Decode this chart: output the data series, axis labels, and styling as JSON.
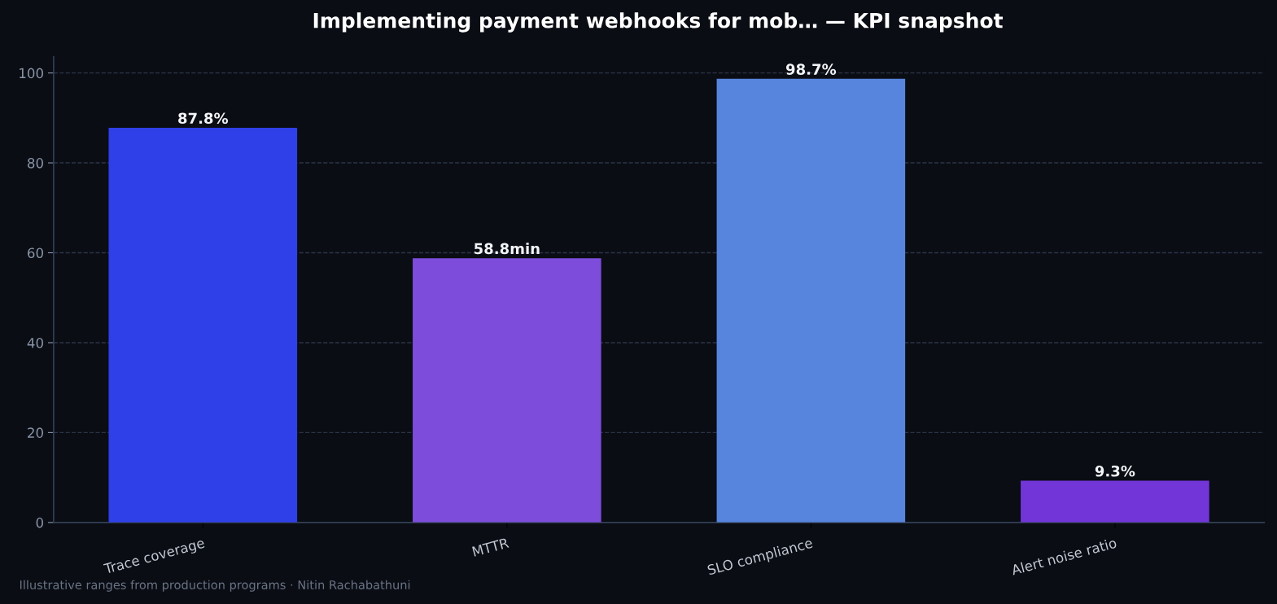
{
  "chart_data": {
    "type": "bar",
    "title": "Implementing payment webhooks for mob… — KPI snapshot",
    "categories": [
      "Trace coverage",
      "MTTR",
      "SLO compliance",
      "Alert noise ratio"
    ],
    "values": [
      87.8,
      58.8,
      98.7,
      9.3
    ],
    "colors": [
      "#3040e8",
      "#7d4cdb",
      "#5784dd",
      "#7236d8"
    ],
    "value_labels": [
      "87.8%",
      "58.8min",
      "98.7%",
      "9.3%"
    ],
    "ylim": [
      0,
      103.6
    ],
    "yticks": [
      0,
      20,
      40,
      60,
      80,
      100
    ],
    "grid": "y",
    "legend": false,
    "annotations": [
      "Illustrative ranges from production programs · Nitin Rachabathuni"
    ]
  }
}
